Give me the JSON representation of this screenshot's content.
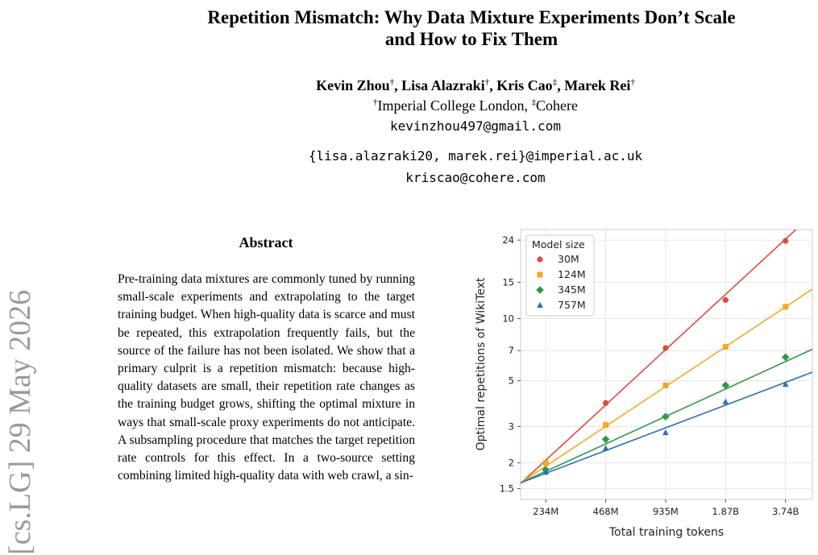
{
  "paper": {
    "title_line1": "Repetition Mismatch: Why Data Mixture Experiments Don’t Scale",
    "title_line2": "and How to Fix Them",
    "authors": [
      {
        "name": "Kevin Zhou",
        "mark": "†",
        "sep": ", "
      },
      {
        "name": "Lisa Alazraki",
        "mark": "†",
        "sep": ", "
      },
      {
        "name": "Kris Cao",
        "mark": "‡",
        "sep": ", "
      },
      {
        "name": "Marek Rei",
        "mark": "†",
        "sep": ""
      }
    ],
    "affiliations": [
      {
        "mark": "†",
        "name": "Imperial College London",
        "sep": ", "
      },
      {
        "mark": "‡",
        "name": "Cohere",
        "sep": ""
      }
    ],
    "emails": [
      "kevinzhou497@gmail.com",
      "{lisa.alazraki20, marek.rei}@imperial.ac.uk",
      "kriscao@cohere.com"
    ],
    "arxiv_stamp": "[cs.LG]  29 May 2026",
    "abstract_heading": "Abstract",
    "abstract_text": "Pre-training data mixtures are commonly tuned by running small-scale experiments and extrapolating to the target training budget. When high-quality data is scarce and must be repeated, this extrapolation frequently fails, but the source of the failure has not been isolated. We show that a primary culprit is a repetition mismatch: because high-quality datasets are small, their repetition rate changes as the training budget grows, shifting the optimal mixture in ways that small-scale proxy experiments do not anticipate. A subsampling procedure that matches the target repetition rate controls for this effect. In a two-source setting combining limited high-quality data with web crawl, a sin-"
  },
  "chart_data": {
    "type": "scatter",
    "title": "",
    "xlabel": "Total training tokens",
    "ylabel": "Optimal repetitions of WikiText",
    "x_scale": "log",
    "y_scale": "log",
    "x_ticks": [
      "234M",
      "468M",
      "935M",
      "1.87B",
      "3.74B"
    ],
    "x_tick_values": [
      234000000,
      468000000,
      935000000,
      1870000000,
      3740000000
    ],
    "xlim": [
      175000000,
      5100000000
    ],
    "y_ticks": [
      1.5,
      2,
      3,
      5,
      7,
      10,
      15,
      24
    ],
    "y_tick_labels": [
      "1.5",
      "2",
      "3",
      "5",
      "7",
      "10",
      "15",
      "24"
    ],
    "ylim": [
      1.33,
      27
    ],
    "grid": true,
    "legend_title": "Model size",
    "legend_position": "top-left",
    "series": [
      {
        "name": "30M",
        "color": "#e04b3b",
        "marker": "circle",
        "points": [
          [
            234000000,
            2.0
          ],
          [
            468000000,
            3.9
          ],
          [
            935000000,
            7.2
          ],
          [
            1870000000,
            12.3
          ],
          [
            3740000000,
            23.8
          ]
        ],
        "fit": [
          [
            175000000,
            1.59
          ],
          [
            5100000000,
            32
          ]
        ]
      },
      {
        "name": "124M",
        "color": "#f2a824",
        "marker": "square",
        "points": [
          [
            234000000,
            2.0
          ],
          [
            468000000,
            3.05
          ],
          [
            935000000,
            4.75
          ],
          [
            1870000000,
            7.3
          ],
          [
            3740000000,
            11.4
          ]
        ],
        "fit": [
          [
            175000000,
            1.6
          ],
          [
            5100000000,
            13.9
          ]
        ]
      },
      {
        "name": "345M",
        "color": "#2e9a45",
        "marker": "diamond",
        "points": [
          [
            234000000,
            1.85
          ],
          [
            468000000,
            2.6
          ],
          [
            935000000,
            3.35
          ],
          [
            1870000000,
            4.75
          ],
          [
            3740000000,
            6.5
          ]
        ],
        "fit": [
          [
            175000000,
            1.6
          ],
          [
            5100000000,
            7.1
          ]
        ]
      },
      {
        "name": "757M",
        "color": "#2f6db5",
        "marker": "triangle",
        "points": [
          [
            234000000,
            1.8
          ],
          [
            468000000,
            2.35
          ],
          [
            935000000,
            2.8
          ],
          [
            1870000000,
            3.95
          ],
          [
            3740000000,
            4.8
          ]
        ],
        "fit": [
          [
            175000000,
            1.6
          ],
          [
            5100000000,
            5.5
          ]
        ]
      }
    ]
  }
}
